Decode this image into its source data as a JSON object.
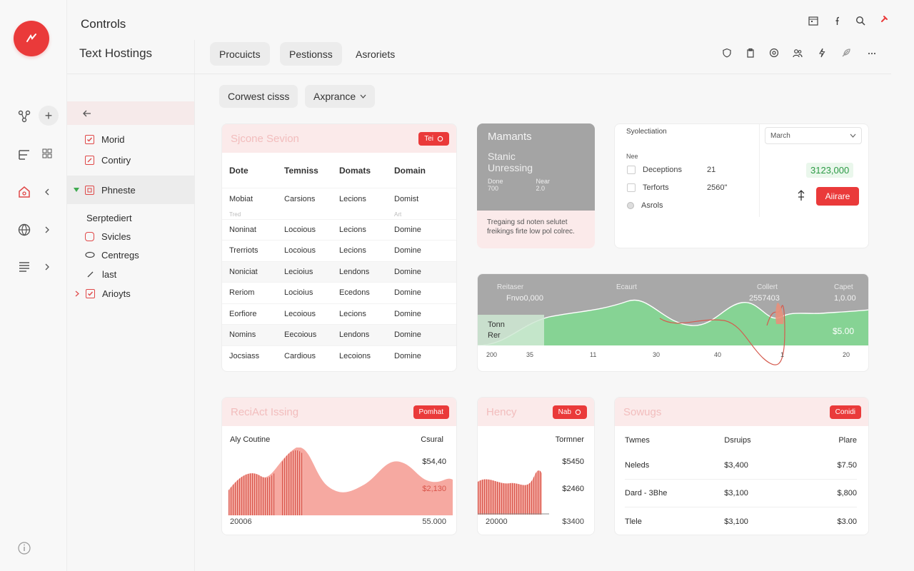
{
  "app": {
    "title": "Controls",
    "subtitle": "Text Hostings"
  },
  "tabs": [
    {
      "label": "Procuicts"
    },
    {
      "label": "Pestionss"
    },
    {
      "label": "Asroriets"
    }
  ],
  "toolbar": {
    "button1": "Corwest cisss",
    "button2": "Axprance"
  },
  "sidebar": {
    "items": [
      {
        "label": "Morid"
      },
      {
        "label": "Contiry"
      },
      {
        "label": "Phneste"
      },
      {
        "label": "Svicles"
      },
      {
        "label": "Centregs"
      },
      {
        "label": "last"
      },
      {
        "label": "Arioyts"
      }
    ],
    "heading": "Serptediert"
  },
  "table_card": {
    "title": "Sjcone Sevion",
    "chip": "Tei",
    "headers": [
      "Dote",
      "Temniss",
      "Domats",
      "Domain"
    ],
    "subrow": [
      "Mobiat",
      "Carsions",
      "Lecions",
      "Domist"
    ],
    "subnote_left": "Tred",
    "subnote_right": "Art",
    "rows": [
      [
        "Noninat",
        "Locoious",
        "Lecions",
        "Domine"
      ],
      [
        "Trerriots",
        "Locoious",
        "Lecions",
        "Domine"
      ],
      [
        "Noniciat",
        "Lecioius",
        "Lendons",
        "Domine"
      ],
      [
        "Reriom",
        "Locioius",
        "Ecedons",
        "Domine"
      ],
      [
        "Eorfiore",
        "Lecoious",
        "Lecions",
        "Domine"
      ],
      [
        "Nomins",
        "Eecoious",
        "Lendons",
        "Domine"
      ],
      [
        "Jocsiass",
        "Cardious",
        "Lecoions",
        "Domine"
      ]
    ]
  },
  "moments_card": {
    "title": "Mamants",
    "subtitle1": "Stanic",
    "subtitle2": "Unressing",
    "col1_label": "Done",
    "col1_value": "700",
    "col2_label": "Near",
    "col2_value": "2.0",
    "footer": "Tregaing sd noten selutet freikings firte low pol colrec."
  },
  "options_card": {
    "title": "Syolectiation",
    "label_small": "Nee",
    "select_value": "March",
    "options": [
      {
        "label": "Deceptions",
        "value": "21"
      },
      {
        "label": "Terforts",
        "value": "2560\""
      },
      {
        "label": "Asrols",
        "value": ""
      }
    ],
    "amount": "3123,000",
    "action": "Aiirare"
  },
  "wave_card": {
    "labels": [
      "Reitaser",
      "Ecaurt",
      "Collert",
      "Capet"
    ],
    "value_left": "Fnvo0,000",
    "value_mid": "2557403",
    "value_right": "1,0.00",
    "side_label1": "Tonn",
    "side_label2": "Rer",
    "price": "$5.00",
    "x_ticks": [
      "200",
      "35",
      "11",
      "30",
      "40",
      "1",
      "20"
    ]
  },
  "bottom1": {
    "title": "ReciAct Issing",
    "chip": "Pomhat",
    "left_label": "Aly Coutine",
    "right_label": "Csural",
    "value1": "$54,40",
    "value2": "$2,130",
    "x_left": "20006",
    "x_right": "55.000"
  },
  "bottom2": {
    "title": "Hency",
    "chip": "Nab",
    "right_label": "Tormner",
    "value1": "$5450",
    "value2": "$2460",
    "x_left": "20000",
    "x_right": "$3400"
  },
  "bottom3": {
    "title": "Sowugs",
    "chip": "Conidi",
    "headers": [
      "Twmes",
      "Dsruips",
      "Plare"
    ],
    "rows": [
      [
        "Neleds",
        "$3,400",
        "$7.50"
      ],
      [
        "Dard - 3Bhe",
        "$3,100",
        "$,800"
      ],
      [
        "Tlele",
        "$3,100",
        "$3.00"
      ]
    ]
  },
  "colors": {
    "accent": "#ea3a3a",
    "pink_bg": "#fbeaea",
    "green": "#7fd18f",
    "gray_card": "#a4a4a4"
  }
}
